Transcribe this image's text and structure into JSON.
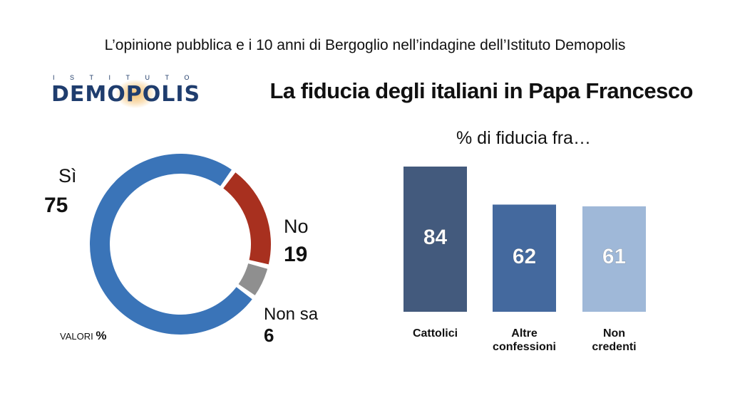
{
  "header": {
    "top_title": "L’opinione pubblica e i 10 anni di Bergoglio nell’indagine dell’Istituto Demopolis",
    "logo_small": "ISTITUTO",
    "logo_main": "DEMOPOLIS",
    "main_title": "La fiducia degli italiani in Papa Francesco"
  },
  "note": {
    "valori": "VALORI",
    "pct": "%"
  },
  "chart_data": [
    {
      "type": "pie",
      "style": "donut",
      "categories": [
        "Sì",
        "No",
        "Non sa"
      ],
      "values": [
        75,
        19,
        6
      ],
      "value_labels": [
        "75",
        "19",
        "6"
      ],
      "colors": [
        "#3a74b8",
        "#a8301f",
        "#8f8f8f"
      ]
    },
    {
      "type": "bar",
      "title": "% di fiducia fra…",
      "categories": [
        "Cattolici",
        "Altre confessioni",
        "Non credenti"
      ],
      "category_lines": [
        [
          "Cattolici"
        ],
        [
          "Altre",
          "confessioni"
        ],
        [
          "Non",
          "credenti"
        ]
      ],
      "values": [
        84,
        62,
        61
      ],
      "colors": [
        "#435a7d",
        "#44699e",
        "#9fb8d8"
      ],
      "ylim": [
        0,
        84
      ],
      "grid": false
    }
  ]
}
